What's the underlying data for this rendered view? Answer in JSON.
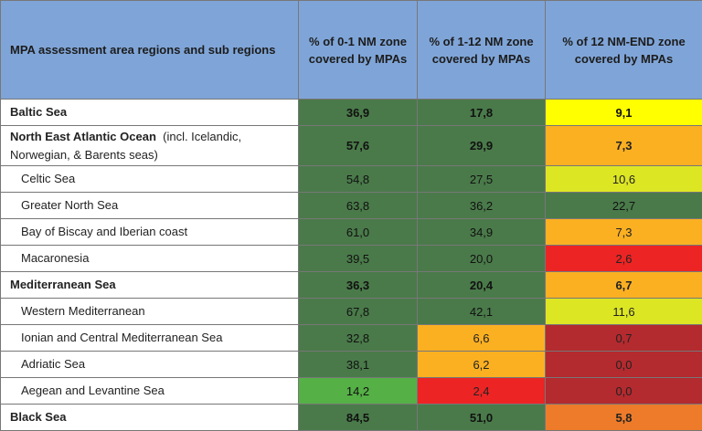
{
  "header": {
    "col0": "MPA assessment area regions and sub regions",
    "col1": "% of 0-1 NM zone covered by MPAs",
    "col2": "% of 1-12 NM zone covered by MPAs",
    "col3": "% of  12 NM-END zone covered by MPAs"
  },
  "rows": [
    {
      "name": "Baltic Sea",
      "note": "",
      "v1": "36,9",
      "v2": "17,8",
      "v3": "9,1"
    },
    {
      "name": "North East Atlantic Ocean",
      "note": "(incl. Icelandic, Norwegian, & Barents seas)",
      "v1": "57,6",
      "v2": "29,9",
      "v3": "7,3"
    },
    {
      "name": "Celtic Sea",
      "note": "",
      "v1": "54,8",
      "v2": "27,5",
      "v3": "10,6"
    },
    {
      "name": "Greater North Sea",
      "note": "",
      "v1": "63,8",
      "v2": "36,2",
      "v3": "22,7"
    },
    {
      "name": "Bay of Biscay and Iberian coast",
      "note": "",
      "v1": "61,0",
      "v2": "34,9",
      "v3": "7,3"
    },
    {
      "name": "Macaronesia",
      "note": "",
      "v1": "39,5",
      "v2": "20,0",
      "v3": "2,6"
    },
    {
      "name": "Mediterranean Sea",
      "note": "",
      "v1": "36,3",
      "v2": "20,4",
      "v3": "6,7"
    },
    {
      "name": "Western Mediterranean",
      "note": "",
      "v1": "67,8",
      "v2": "42,1",
      "v3": "11,6"
    },
    {
      "name": "Ionian and Central Mediterranean Sea",
      "note": "",
      "v1": "32,8",
      "v2": "6,6",
      "v3": "0,7"
    },
    {
      "name": "Adriatic Sea",
      "note": "",
      "v1": "38,1",
      "v2": "6,2",
      "v3": "0,0"
    },
    {
      "name": "Aegean and Levantine Sea",
      "note": "",
      "v1": "14,2",
      "v2": "2,4",
      "v3": "0,0"
    },
    {
      "name": "Black Sea",
      "note": "",
      "v1": "84,5",
      "v2": "51,0",
      "v3": "5,8"
    }
  ],
  "colors": {
    "header_bg": "#7fa5d8",
    "dark_green": "#4a7a4a",
    "green": "#55b046",
    "yellow": "#ffff00",
    "lime": "#dde623",
    "orange": "#fbb022",
    "dark_orange": "#ed7b2a",
    "red": "#ec2424",
    "dark_red": "#b32a2f"
  }
}
